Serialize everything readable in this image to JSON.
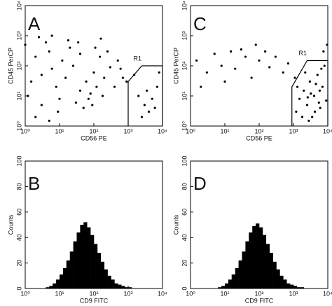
{
  "chart_data": [
    {
      "type": "scatter",
      "panel_label": "A",
      "xlabel": "CD56 PE",
      "ylabel": "CD45 PerCP",
      "xscale": "log",
      "yscale": "log",
      "xlim": [
        1,
        10000
      ],
      "ylim": [
        1,
        10000
      ],
      "xticks": [
        {
          "value": 1,
          "label": "10⁰"
        },
        {
          "value": 10,
          "label": "10¹"
        },
        {
          "value": 100,
          "label": "10²"
        },
        {
          "value": 1000,
          "label": "10³"
        },
        {
          "value": 10000,
          "label": "10⁴"
        }
      ],
      "yticks": [
        {
          "value": 1,
          "label": "10⁰"
        },
        {
          "value": 10,
          "label": "10¹"
        },
        {
          "value": 100,
          "label": "10²"
        },
        {
          "value": 1000,
          "label": "10³"
        },
        {
          "value": 10000,
          "label": "10⁴"
        }
      ],
      "gate": {
        "label": "R1",
        "x": [
          1000,
          1000,
          2500,
          10000,
          10000
        ],
        "y": [
          1,
          30,
          100,
          100,
          1
        ]
      },
      "color": "#000000",
      "x": [
        2,
        3,
        5,
        8,
        12,
        20,
        1.5,
        4,
        6,
        15,
        25,
        40,
        60,
        80,
        100,
        150,
        200,
        300,
        500,
        700,
        1.2,
        3,
        10,
        30,
        50,
        70,
        40,
        90,
        120,
        180,
        250,
        400,
        600,
        900,
        2000,
        3000,
        4000,
        5000,
        2500,
        3500,
        6000,
        7000,
        1500,
        8000,
        2,
        5,
        9,
        1,
        2.5,
        6,
        18,
        35,
        110,
        160
      ],
      "values": [
        200,
        50,
        300,
        20,
        150,
        400,
        30,
        600,
        80,
        40,
        100,
        250,
        30,
        12,
        60,
        200,
        40,
        90,
        150,
        40,
        10,
        5,
        8,
        6,
        4,
        8,
        15,
        5,
        20,
        10,
        300,
        20,
        80,
        30,
        10,
        5,
        3,
        8,
        2,
        15,
        4,
        20,
        50,
        60,
        2,
        1.5,
        3,
        500,
        900,
        1000,
        700,
        600,
        400,
        800
      ]
    },
    {
      "type": "scatter",
      "panel_label": "C",
      "xlabel": "CD56 PE",
      "ylabel": "CD45 PerCP",
      "xscale": "log",
      "yscale": "log",
      "xlim": [
        1,
        10000
      ],
      "ylim": [
        1,
        10000
      ],
      "xticks": [
        {
          "value": 1,
          "label": "10⁰"
        },
        {
          "value": 10,
          "label": "10¹"
        },
        {
          "value": 100,
          "label": "10²"
        },
        {
          "value": 1000,
          "label": "10³"
        },
        {
          "value": 10000,
          "label": "10⁴"
        }
      ],
      "yticks": [
        {
          "value": 1,
          "label": "10⁰"
        },
        {
          "value": 10,
          "label": "10¹"
        },
        {
          "value": 100,
          "label": "10²"
        },
        {
          "value": 1000,
          "label": "10³"
        },
        {
          "value": 10000,
          "label": "10⁴"
        }
      ],
      "gate": {
        "label": "R1",
        "x": [
          900,
          900,
          2500,
          10000,
          10000
        ],
        "y": [
          1,
          20,
          150,
          150,
          1
        ]
      },
      "color": "#000000",
      "x": [
        1.5,
        3,
        5,
        8,
        15,
        20,
        40,
        60,
        100,
        150,
        200,
        300,
        500,
        700,
        2,
        10,
        30,
        80,
        1200,
        1500,
        2000,
        2500,
        3000,
        3500,
        4000,
        5000,
        6000,
        7000,
        8000,
        9000,
        1100,
        1800,
        2200,
        2800,
        3200,
        4500,
        5500,
        6500,
        7500,
        9500,
        1300,
        2600,
        4200,
        5800
      ],
      "values": [
        150,
        60,
        250,
        100,
        300,
        80,
        200,
        40,
        150,
        300,
        90,
        200,
        60,
        120,
        20,
        30,
        350,
        500,
        3,
        8,
        15,
        5,
        30,
        2,
        10,
        50,
        4,
        20,
        100,
        7,
        40,
        2,
        60,
        1.5,
        12,
        25,
        6,
        80,
        300,
        500,
        20,
        9,
        3,
        15
      ]
    },
    {
      "type": "histogram",
      "panel_label": "B",
      "xlabel": "CD9 FITC",
      "ylabel": "Counts",
      "xscale": "log",
      "xlim": [
        1,
        10000
      ],
      "ylim": [
        0,
        100
      ],
      "xticks": [
        {
          "value": 1,
          "label": "10⁰"
        },
        {
          "value": 10,
          "label": "10¹"
        },
        {
          "value": 100,
          "label": "10²"
        },
        {
          "value": 1000,
          "label": "10³"
        },
        {
          "value": 10000,
          "label": "10⁴"
        }
      ],
      "yticks": [
        0,
        20,
        40,
        60,
        80,
        100
      ],
      "color": "#000000",
      "bins": [
        1,
        1.26,
        1.58,
        2,
        2.51,
        3.16,
        3.98,
        5.01,
        6.31,
        7.94,
        10,
        12.6,
        15.8,
        20,
        25.1,
        31.6,
        39.8,
        50.1,
        63.1,
        79.4,
        100,
        126,
        158,
        200,
        251,
        316,
        398,
        501,
        631,
        794,
        1000,
        1260,
        1580,
        2000,
        2510,
        3160,
        3980,
        5010,
        6310,
        7940,
        10000
      ],
      "values": [
        0,
        0,
        0,
        0,
        0,
        0,
        1,
        2,
        4,
        7,
        11,
        16,
        22,
        29,
        37,
        44,
        50,
        52,
        48,
        42,
        35,
        28,
        21,
        15,
        10,
        7,
        4,
        3,
        2,
        1,
        1,
        0,
        0,
        0,
        0,
        0,
        0,
        0,
        0,
        0
      ]
    },
    {
      "type": "histogram",
      "panel_label": "D",
      "xlabel": "CD9 FITC",
      "ylabel": "Counts",
      "xscale": "log",
      "xlim": [
        1,
        10000
      ],
      "ylim": [
        0,
        100
      ],
      "xticks": [
        {
          "value": 1,
          "label": "10⁰"
        },
        {
          "value": 10,
          "label": "10¹"
        },
        {
          "value": 100,
          "label": "10²"
        },
        {
          "value": 1000,
          "label": "10³"
        },
        {
          "value": 10000,
          "label": "10⁴"
        }
      ],
      "yticks": [
        0,
        20,
        40,
        60,
        80,
        100
      ],
      "color": "#000000",
      "bins": [
        1,
        1.26,
        1.58,
        2,
        2.51,
        3.16,
        3.98,
        5.01,
        6.31,
        7.94,
        10,
        12.6,
        15.8,
        20,
        25.1,
        31.6,
        39.8,
        50.1,
        63.1,
        79.4,
        100,
        126,
        158,
        200,
        251,
        316,
        398,
        501,
        631,
        794,
        1000,
        1260,
        1580,
        2000,
        2510,
        3160,
        3980,
        5010,
        6310,
        7940,
        10000
      ],
      "values": [
        0,
        0,
        0,
        0,
        0,
        0,
        0,
        0,
        1,
        2,
        4,
        7,
        11,
        16,
        22,
        29,
        37,
        44,
        49,
        51,
        48,
        42,
        35,
        28,
        21,
        15,
        10,
        7,
        4,
        3,
        2,
        1,
        1,
        0,
        0,
        0,
        0,
        0,
        0,
        0
      ]
    }
  ]
}
